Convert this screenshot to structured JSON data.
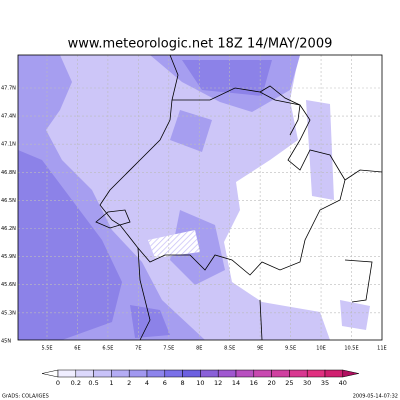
{
  "title": "www.meteorologic.net  18Z 14/MAY/2009",
  "lat_labels": [
    "47.7N",
    "47.4N",
    "47.1N",
    "46.8N",
    "46.5N",
    "46.2N",
    "45.9N",
    "45.6N",
    "45.3N",
    "45N"
  ],
  "lon_labels": [
    "5.5E",
    "6E",
    "6.5E",
    "7E",
    "7.5E",
    "8E",
    "8.5E",
    "9E",
    "9.5E",
    "10E",
    "10.5E",
    "11E"
  ],
  "legend_labels": [
    "0",
    "0.2",
    "0.5",
    "1",
    "2",
    "4",
    "6",
    "8",
    "10",
    "12",
    "14",
    "16",
    "20",
    "25",
    "30",
    "35",
    "40"
  ],
  "footer_left": "GrADS: COLA/IGES",
  "footer_right": "2009-05-14-07:32"
}
